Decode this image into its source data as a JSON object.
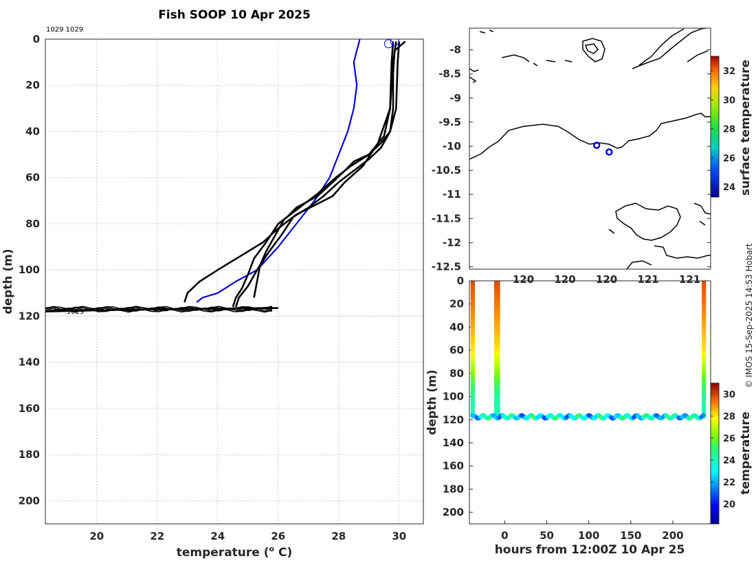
{
  "title": "Fish SOOP 10 Apr 2025",
  "credit": "© IMOS 15-Sep-2025 14:53 Hobart",
  "colors": {
    "profile": "#000000",
    "climatology": "#0000dd",
    "marker": "#0000dd"
  },
  "chart_data": [
    {
      "type": "line",
      "name": "temperature-depth profiles",
      "xlabel": "temperature (o C)",
      "xlabel_parts": [
        "temperature (",
        "o",
        " C)"
      ],
      "ylabel": "depth (m)",
      "xlim": [
        18.3,
        30.8
      ],
      "ylim": [
        210,
        0
      ],
      "xticks": [
        20,
        22,
        24,
        26,
        28,
        30
      ],
      "yticks": [
        0,
        20,
        40,
        60,
        80,
        100,
        120,
        140,
        160,
        180,
        200
      ],
      "annotations": [
        "1029 1029",
        "1029"
      ],
      "series": [
        {
          "name": "climatology",
          "color": "#0000dd",
          "temp": [
            28.7,
            28.6,
            28.5,
            28.6,
            28.5,
            28.3,
            28.0,
            27.7,
            27.2,
            26.6,
            26.0,
            25.3,
            24.6,
            24.0,
            23.5,
            23.3
          ],
          "depth": [
            0,
            5,
            10,
            20,
            30,
            40,
            50,
            60,
            70,
            80,
            90,
            100,
            105,
            110,
            112,
            114
          ]
        },
        {
          "name": "profile 1",
          "color": "#000000",
          "temp": [
            30.2,
            29.85,
            29.8,
            29.8,
            29.7,
            29.4,
            29.0,
            28.5,
            28.2,
            27.8,
            27.3,
            26.6,
            26.3,
            26.0,
            25.6,
            25.2,
            25.0,
            24.8,
            24.6,
            24.5
          ],
          "depth": [
            1,
            5,
            15,
            30,
            40,
            45,
            50,
            53,
            57,
            62,
            68,
            73,
            77,
            80,
            88,
            95,
            102,
            108,
            112,
            116
          ]
        },
        {
          "name": "profile 2",
          "color": "#000000",
          "temp": [
            30.0,
            29.95,
            29.9,
            29.7,
            29.4,
            29.0,
            28.5,
            28.0,
            27.5,
            27.0,
            26.5,
            26.1,
            25.7,
            25.3,
            25.0,
            24.7,
            24.6
          ],
          "depth": [
            1,
            10,
            30,
            40,
            47,
            52,
            57,
            62,
            68,
            73,
            77,
            85,
            92,
            100,
            107,
            112,
            116
          ]
        },
        {
          "name": "profile 3",
          "color": "#000000",
          "temp": [
            29.9,
            29.8,
            29.7,
            29.3,
            28.8,
            28.2,
            27.8,
            27.2,
            26.6,
            26.0,
            25.5,
            25.0,
            24.5,
            24.0,
            23.4,
            23.0,
            22.9
          ],
          "depth": [
            1,
            10,
            30,
            45,
            55,
            62,
            68,
            72,
            76,
            82,
            88,
            92,
            96,
            100,
            105,
            110,
            114
          ]
        },
        {
          "name": "profile 4",
          "color": "#000000",
          "temp": [
            29.8,
            29.75,
            29.7,
            29.5,
            29.0,
            28.4,
            27.9,
            27.3,
            26.8,
            26.2,
            25.9,
            25.6,
            25.4,
            25.3,
            25.2
          ],
          "depth": [
            1,
            10,
            30,
            42,
            50,
            55,
            60,
            67,
            72,
            78,
            85,
            92,
            98,
            105,
            112
          ]
        },
        {
          "name": "bottom segment",
          "color": "#000000",
          "temp": [
            18.3,
            20.0,
            22.0,
            24.0,
            25.5,
            26.0
          ],
          "depth": [
            118,
            117.5,
            117,
            116.8,
            116.5,
            116.5
          ]
        }
      ],
      "markers": [
        {
          "temp": 29.65,
          "depth": 2
        },
        {
          "temp": 29.85,
          "depth": 1
        }
      ]
    },
    {
      "type": "scatter",
      "name": "location map",
      "xlim": [
        119.0,
        121.9
      ],
      "ylim": [
        -12.55,
        -7.55
      ],
      "yticks": [
        -8,
        -8.5,
        -9,
        -9.5,
        -10,
        -10.5,
        -11,
        -11.5,
        -12,
        -12.5
      ],
      "xticks_visible": [
        "120",
        "120",
        "120",
        "121",
        "121"
      ],
      "colorbar": {
        "label": "surface temperature",
        "ticks": [
          24,
          26,
          28,
          30,
          32
        ],
        "range": [
          23.3,
          33
        ]
      },
      "points": [
        {
          "lon": 120.53,
          "lat": -9.98
        },
        {
          "lon": 120.68,
          "lat": -10.12
        }
      ]
    },
    {
      "type": "scatter",
      "name": "depth-time temperature section",
      "xlabel": "hours from 12:00Z 10 Apr 25",
      "ylabel": "depth (m)",
      "xlim": [
        -42,
        245
      ],
      "ylim": [
        210,
        0
      ],
      "xticks": [
        0,
        50,
        100,
        150,
        200
      ],
      "yticks": [
        0,
        20,
        40,
        60,
        80,
        100,
        120,
        140,
        160,
        180,
        200
      ],
      "colorbar": {
        "label": "temperature",
        "ticks": [
          20,
          22,
          24,
          26,
          28,
          30
        ],
        "range": [
          18.2,
          31
        ]
      },
      "casts": [
        {
          "hour": -38,
          "top_depth": 0,
          "bottom_depth": 117,
          "surface_temp": 29.9
        },
        {
          "hour": -10,
          "top_depth": 0,
          "bottom_depth": 117,
          "surface_temp": 29.9
        },
        {
          "hour": -8,
          "top_depth": 0,
          "bottom_depth": 117,
          "surface_temp": 29.9
        },
        {
          "hour": 237,
          "top_depth": 0,
          "bottom_depth": 117,
          "surface_temp": 29.9
        }
      ],
      "bottom_track": {
        "hour_start": -38,
        "hour_end": 237,
        "depth": 117.5
      }
    }
  ]
}
